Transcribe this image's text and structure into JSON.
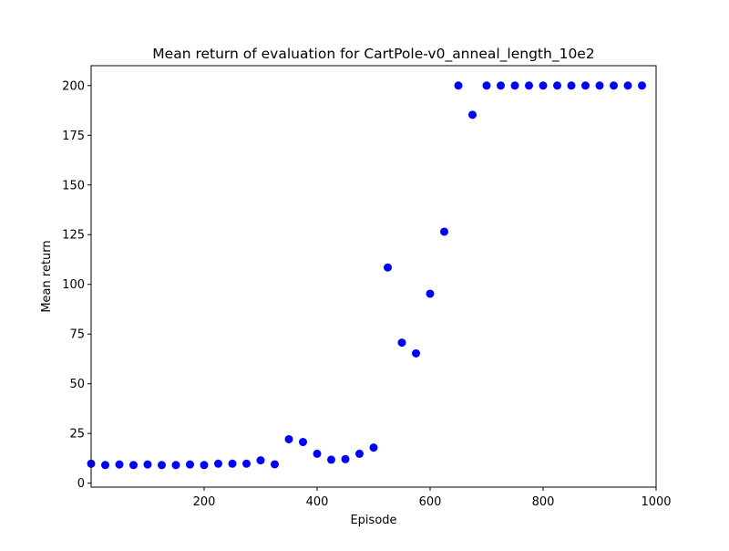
{
  "chart_data": {
    "type": "scatter",
    "title": "Mean return of evaluation for CartPole-v0_anneal_length_10e2",
    "xlabel": "Episode",
    "ylabel": "Mean return",
    "xlim": [
      0,
      1000
    ],
    "ylim": [
      -2,
      210
    ],
    "xticks": [
      200,
      400,
      600,
      800,
      1000
    ],
    "yticks": [
      0,
      25,
      50,
      75,
      100,
      125,
      150,
      175,
      200
    ],
    "grid": false,
    "marker_color": "#0000ff",
    "series": [
      {
        "x": [
          0,
          25,
          50,
          75,
          100,
          125,
          150,
          175,
          200,
          225,
          250,
          275,
          300,
          325,
          350,
          375,
          400,
          425,
          450,
          475,
          500,
          525,
          550,
          575,
          600,
          625,
          650,
          675,
          700,
          725,
          750,
          775,
          800,
          825,
          850,
          875,
          900,
          925,
          950,
          975
        ],
        "y": [
          9.8,
          9.1,
          9.4,
          9.1,
          9.4,
          9.1,
          9.1,
          9.4,
          9.1,
          9.8,
          9.8,
          9.8,
          11.5,
          9.5,
          22.1,
          20.7,
          14.8,
          11.8,
          12.1,
          14.8,
          17.9,
          108.5,
          70.7,
          65.3,
          95.3,
          126.5,
          200,
          185.3,
          200,
          200,
          200,
          200,
          200,
          200,
          200,
          200,
          200,
          200,
          200,
          200
        ]
      }
    ]
  }
}
